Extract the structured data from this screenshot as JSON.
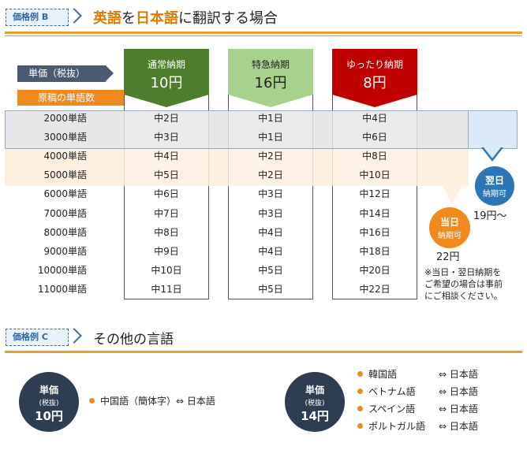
{
  "section_b": {
    "tag": "価格例 B",
    "title_parts": [
      "英語",
      "を",
      "日本語",
      "に翻訳する場合"
    ],
    "label_price": "単価（税抜）",
    "label_words": "原稿の単語数",
    "columns": [
      {
        "name": "通常納期",
        "price": "10円",
        "color": "#4e7d2e",
        "text_color": "#ffffff"
      },
      {
        "name": "特急納期",
        "price": "16円",
        "color": "#a9d18e",
        "text_color": "#1f1f1f"
      },
      {
        "name": "ゆったり納期",
        "price": "8円",
        "color": "#c00000",
        "text_color": "#ffffff"
      }
    ],
    "rows": [
      {
        "words": "2000単語",
        "normal": "中2日",
        "express": "中1日",
        "relaxed": "中4日"
      },
      {
        "words": "3000単語",
        "normal": "中3日",
        "express": "中1日",
        "relaxed": "中6日"
      },
      {
        "words": "4000単語",
        "normal": "中4日",
        "express": "中2日",
        "relaxed": "中8日"
      },
      {
        "words": "5000単語",
        "normal": "中5日",
        "express": "中2日",
        "relaxed": "中10日"
      },
      {
        "words": "6000単語",
        "normal": "中6日",
        "express": "中3日",
        "relaxed": "中12日"
      },
      {
        "words": "7000単語",
        "normal": "中7日",
        "express": "中3日",
        "relaxed": "中14日"
      },
      {
        "words": "8000単語",
        "normal": "中8日",
        "express": "中4日",
        "relaxed": "中16日"
      },
      {
        "words": "9000単語",
        "normal": "中9日",
        "express": "中4日",
        "relaxed": "中18日"
      },
      {
        "words": "10000単語",
        "normal": "中10日",
        "express": "中5日",
        "relaxed": "中20日"
      },
      {
        "words": "11000単語",
        "normal": "中11日",
        "express": "中5日",
        "relaxed": "中22日"
      }
    ],
    "badge_next_day": {
      "line1": "翌日",
      "line2": "納期可",
      "price": "19円～",
      "color": "#2e75b6"
    },
    "badge_same_day": {
      "line1": "当日",
      "line2": "納期可",
      "price": "22円",
      "color": "#f08a1e"
    },
    "note_lines": [
      "※当日・翌日納期を",
      "ご希望の場合は事前",
      "にご相談ください。"
    ]
  },
  "section_c": {
    "tag": "価格例 C",
    "title": "その他の言語",
    "circle_left": {
      "line1": "単価",
      "line2": "(税抜)",
      "price": "10円"
    },
    "circle_right": {
      "line1": "単価",
      "line2": "(税抜)",
      "price": "14円"
    },
    "left_languages": [
      {
        "from": "中国語（簡体字）⇔ 日本語"
      }
    ],
    "right_languages": [
      {
        "from": "韓国語",
        "to": "⇔ 日本語"
      },
      {
        "from": "ベトナム語",
        "to": "⇔ 日本語"
      },
      {
        "from": "スペイン語",
        "to": "⇔ 日本語"
      },
      {
        "from": "ポルトガル語",
        "to": "⇔ 日本語"
      }
    ]
  }
}
